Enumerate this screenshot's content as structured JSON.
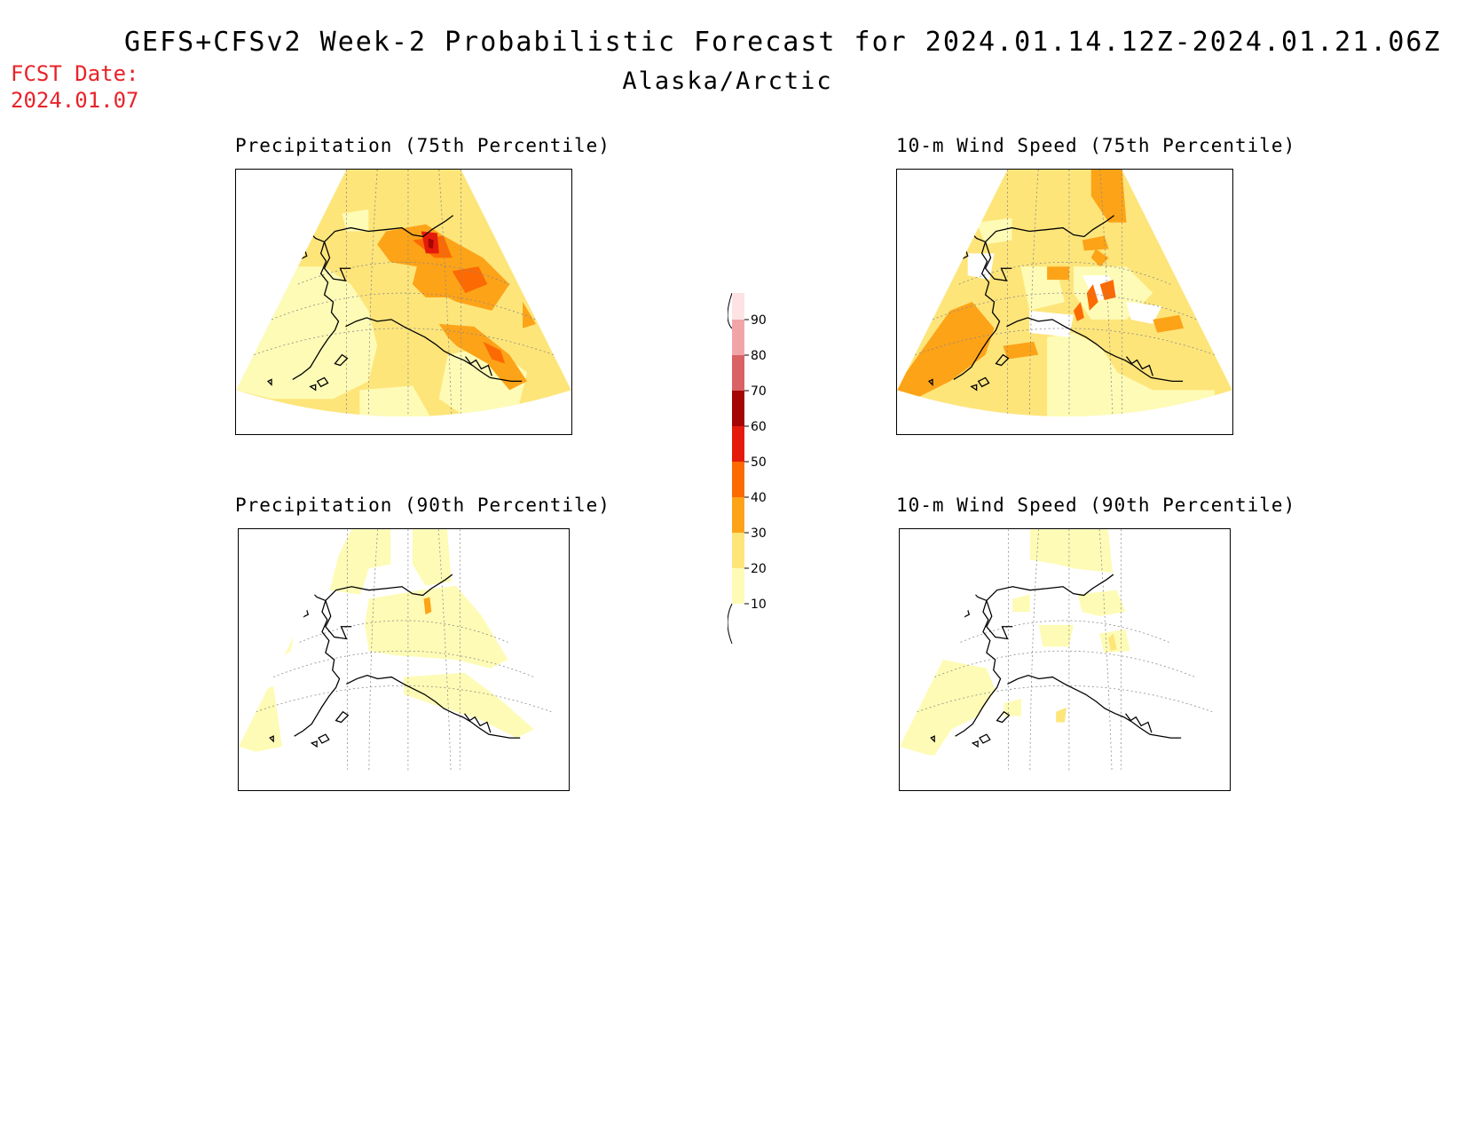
{
  "header": {
    "title": "GEFS+CFSv2 Week-2 Probabilistic Forecast for 2024.01.14.12Z-2024.01.21.06Z",
    "subtitle": "Alaska/Arctic",
    "fcst_label": "FCST Date:",
    "fcst_date": "2024.01.07"
  },
  "panels": [
    {
      "title": "Precipitation (75th Percentile)"
    },
    {
      "title": "10-m Wind Speed (75th Percentile)"
    },
    {
      "title": "Precipitation (90th Percentile)"
    },
    {
      "title": "10-m Wind Speed (90th Percentile)"
    }
  ],
  "colorbar": {
    "levels": [
      "10",
      "20",
      "30",
      "40",
      "50",
      "60",
      "70",
      "80",
      "90"
    ],
    "colors": [
      "#fefbb6",
      "#fde57a",
      "#fda318",
      "#fc6a03",
      "#e41b0a",
      "#a40604",
      "#d96264",
      "#f2a5a8",
      "#fde3e3"
    ]
  }
}
